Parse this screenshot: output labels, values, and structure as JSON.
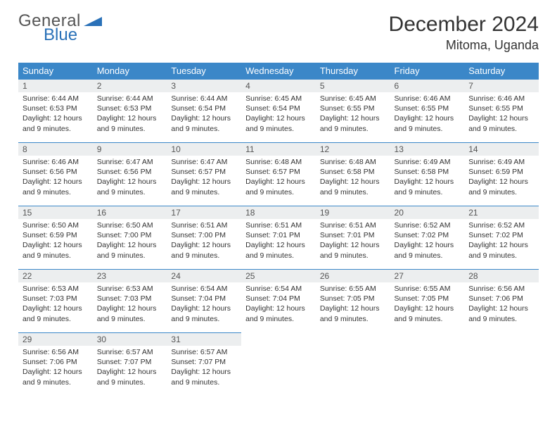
{
  "logo": {
    "text1": "General",
    "text2": "Blue",
    "shape_color": "#2a71b8"
  },
  "title": "December 2024",
  "location": "Mitoma, Uganda",
  "colors": {
    "header_bg": "#3b87c8",
    "header_text": "#ffffff",
    "daynum_bg": "#eceeef",
    "border": "#3b87c8"
  },
  "weekdays": [
    "Sunday",
    "Monday",
    "Tuesday",
    "Wednesday",
    "Thursday",
    "Friday",
    "Saturday"
  ],
  "weeks": [
    [
      {
        "n": "1",
        "sunrise": "6:44 AM",
        "sunset": "6:53 PM",
        "daylight": "12 hours and 9 minutes."
      },
      {
        "n": "2",
        "sunrise": "6:44 AM",
        "sunset": "6:53 PM",
        "daylight": "12 hours and 9 minutes."
      },
      {
        "n": "3",
        "sunrise": "6:44 AM",
        "sunset": "6:54 PM",
        "daylight": "12 hours and 9 minutes."
      },
      {
        "n": "4",
        "sunrise": "6:45 AM",
        "sunset": "6:54 PM",
        "daylight": "12 hours and 9 minutes."
      },
      {
        "n": "5",
        "sunrise": "6:45 AM",
        "sunset": "6:55 PM",
        "daylight": "12 hours and 9 minutes."
      },
      {
        "n": "6",
        "sunrise": "6:46 AM",
        "sunset": "6:55 PM",
        "daylight": "12 hours and 9 minutes."
      },
      {
        "n": "7",
        "sunrise": "6:46 AM",
        "sunset": "6:55 PM",
        "daylight": "12 hours and 9 minutes."
      }
    ],
    [
      {
        "n": "8",
        "sunrise": "6:46 AM",
        "sunset": "6:56 PM",
        "daylight": "12 hours and 9 minutes."
      },
      {
        "n": "9",
        "sunrise": "6:47 AM",
        "sunset": "6:56 PM",
        "daylight": "12 hours and 9 minutes."
      },
      {
        "n": "10",
        "sunrise": "6:47 AM",
        "sunset": "6:57 PM",
        "daylight": "12 hours and 9 minutes."
      },
      {
        "n": "11",
        "sunrise": "6:48 AM",
        "sunset": "6:57 PM",
        "daylight": "12 hours and 9 minutes."
      },
      {
        "n": "12",
        "sunrise": "6:48 AM",
        "sunset": "6:58 PM",
        "daylight": "12 hours and 9 minutes."
      },
      {
        "n": "13",
        "sunrise": "6:49 AM",
        "sunset": "6:58 PM",
        "daylight": "12 hours and 9 minutes."
      },
      {
        "n": "14",
        "sunrise": "6:49 AM",
        "sunset": "6:59 PM",
        "daylight": "12 hours and 9 minutes."
      }
    ],
    [
      {
        "n": "15",
        "sunrise": "6:50 AM",
        "sunset": "6:59 PM",
        "daylight": "12 hours and 9 minutes."
      },
      {
        "n": "16",
        "sunrise": "6:50 AM",
        "sunset": "7:00 PM",
        "daylight": "12 hours and 9 minutes."
      },
      {
        "n": "17",
        "sunrise": "6:51 AM",
        "sunset": "7:00 PM",
        "daylight": "12 hours and 9 minutes."
      },
      {
        "n": "18",
        "sunrise": "6:51 AM",
        "sunset": "7:01 PM",
        "daylight": "12 hours and 9 minutes."
      },
      {
        "n": "19",
        "sunrise": "6:51 AM",
        "sunset": "7:01 PM",
        "daylight": "12 hours and 9 minutes."
      },
      {
        "n": "20",
        "sunrise": "6:52 AM",
        "sunset": "7:02 PM",
        "daylight": "12 hours and 9 minutes."
      },
      {
        "n": "21",
        "sunrise": "6:52 AM",
        "sunset": "7:02 PM",
        "daylight": "12 hours and 9 minutes."
      }
    ],
    [
      {
        "n": "22",
        "sunrise": "6:53 AM",
        "sunset": "7:03 PM",
        "daylight": "12 hours and 9 minutes."
      },
      {
        "n": "23",
        "sunrise": "6:53 AM",
        "sunset": "7:03 PM",
        "daylight": "12 hours and 9 minutes."
      },
      {
        "n": "24",
        "sunrise": "6:54 AM",
        "sunset": "7:04 PM",
        "daylight": "12 hours and 9 minutes."
      },
      {
        "n": "25",
        "sunrise": "6:54 AM",
        "sunset": "7:04 PM",
        "daylight": "12 hours and 9 minutes."
      },
      {
        "n": "26",
        "sunrise": "6:55 AM",
        "sunset": "7:05 PM",
        "daylight": "12 hours and 9 minutes."
      },
      {
        "n": "27",
        "sunrise": "6:55 AM",
        "sunset": "7:05 PM",
        "daylight": "12 hours and 9 minutes."
      },
      {
        "n": "28",
        "sunrise": "6:56 AM",
        "sunset": "7:06 PM",
        "daylight": "12 hours and 9 minutes."
      }
    ],
    [
      {
        "n": "29",
        "sunrise": "6:56 AM",
        "sunset": "7:06 PM",
        "daylight": "12 hours and 9 minutes."
      },
      {
        "n": "30",
        "sunrise": "6:57 AM",
        "sunset": "7:07 PM",
        "daylight": "12 hours and 9 minutes."
      },
      {
        "n": "31",
        "sunrise": "6:57 AM",
        "sunset": "7:07 PM",
        "daylight": "12 hours and 9 minutes."
      },
      null,
      null,
      null,
      null
    ]
  ],
  "labels": {
    "sunrise": "Sunrise:",
    "sunset": "Sunset:",
    "daylight": "Daylight:"
  }
}
